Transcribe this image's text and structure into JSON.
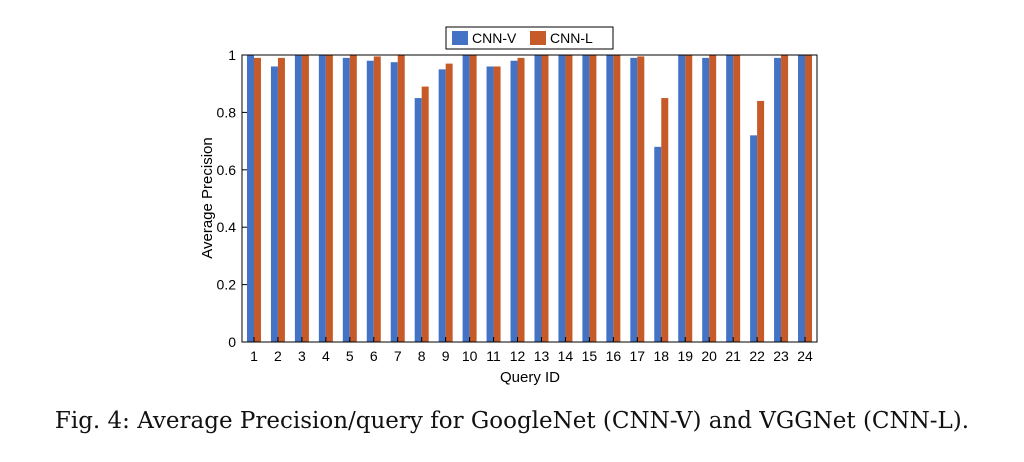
{
  "caption": "Fig. 4: Average Precision/query for GoogleNet (CNN-V) and VGGNet (CNN-L).",
  "chart_data": {
    "type": "bar",
    "title": "",
    "xlabel": "Query ID",
    "ylabel": "Average Precision",
    "categories": [
      "1",
      "2",
      "3",
      "4",
      "5",
      "6",
      "7",
      "8",
      "9",
      "10",
      "11",
      "12",
      "13",
      "14",
      "15",
      "16",
      "17",
      "18",
      "19",
      "20",
      "21",
      "22",
      "23",
      "24"
    ],
    "ylim": [
      0,
      1
    ],
    "yticks": [
      "0",
      "0.2",
      "0.4",
      "0.6",
      "0.8",
      "1"
    ],
    "grid": false,
    "legend_position": "top-center",
    "series": [
      {
        "name": "CNN-V",
        "color": "#4472C4",
        "values": [
          1.0,
          0.96,
          1.0,
          1.0,
          0.99,
          0.98,
          0.975,
          0.85,
          0.95,
          1.0,
          0.96,
          0.98,
          1.0,
          1.0,
          1.0,
          1.0,
          0.99,
          0.68,
          1.0,
          0.99,
          1.0,
          0.72,
          0.99,
          1.0
        ]
      },
      {
        "name": "CNN-L",
        "color": "#C65A28",
        "values": [
          0.99,
          0.99,
          1.0,
          1.0,
          1.0,
          0.995,
          1.0,
          0.89,
          0.97,
          1.0,
          0.96,
          0.99,
          1.0,
          1.0,
          1.0,
          1.0,
          0.995,
          0.85,
          1.0,
          1.0,
          1.0,
          0.84,
          1.0,
          1.0
        ]
      }
    ]
  }
}
